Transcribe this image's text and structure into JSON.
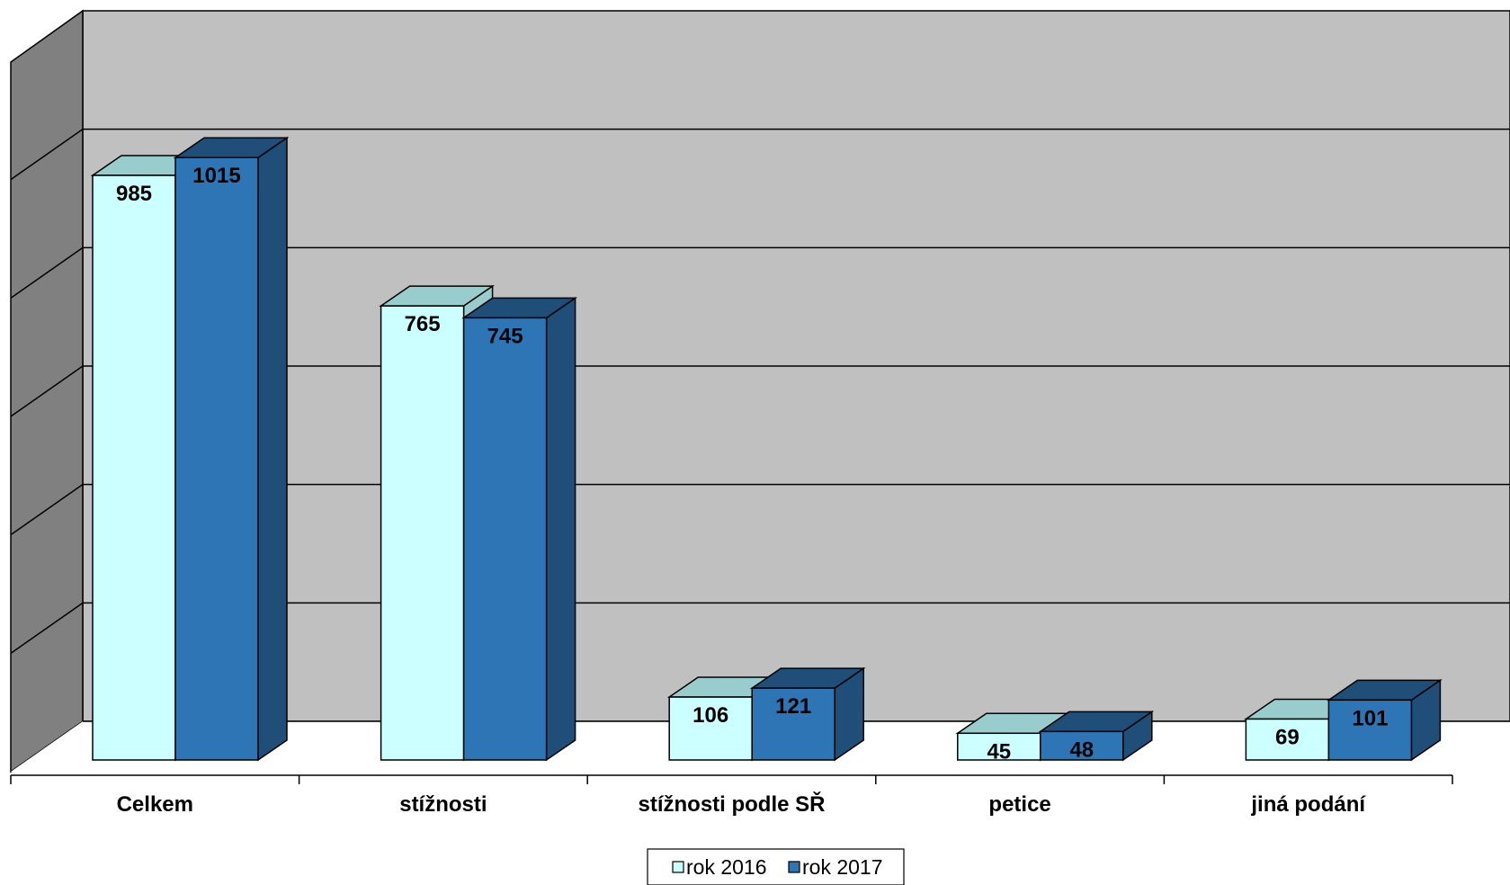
{
  "chart_data": {
    "type": "bar",
    "categories": [
      "Celkem",
      "stížnosti",
      "stížnosti podle SŘ",
      "petice",
      "jiná podání"
    ],
    "series": [
      {
        "name": "rok 2016",
        "values": [
          985,
          765,
          106,
          45,
          69
        ],
        "color": "#CCFFFF",
        "top_color": "#99CCCC",
        "side_color": "#99CCCC"
      },
      {
        "name": "rok 2017",
        "values": [
          1015,
          745,
          121,
          48,
          101
        ],
        "color": "#2E75B6",
        "top_color": "#1F4E79",
        "side_color": "#1F4E79"
      }
    ],
    "ylim": [
      0,
      1200
    ],
    "grid": true,
    "legend_position": "bottom",
    "wall_color": "#C0C0C0",
    "side_wall_color": "#808080"
  }
}
